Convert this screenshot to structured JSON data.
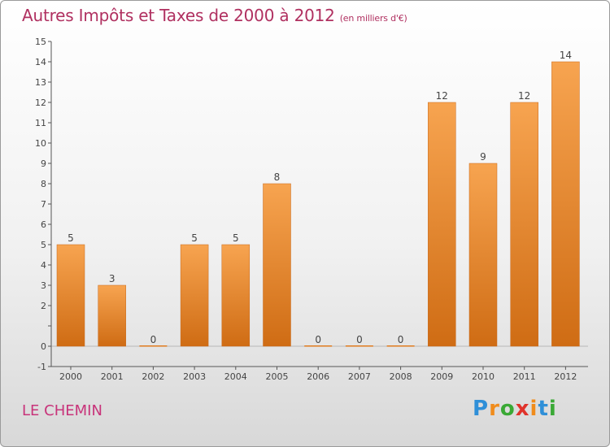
{
  "chart_data": {
    "type": "bar",
    "title": "Autres Impôts et Taxes de 2000 à 2012",
    "subtitle": "(en milliers d'€)",
    "xlabel": "",
    "ylabel": "",
    "categories": [
      "2000",
      "2001",
      "2002",
      "2003",
      "2004",
      "2005",
      "2006",
      "2007",
      "2008",
      "2009",
      "2010",
      "2011",
      "2012"
    ],
    "values": [
      5,
      3,
      0,
      5,
      5,
      8,
      0,
      0,
      0,
      12,
      9,
      12,
      14
    ],
    "ylim": [
      -1,
      15
    ],
    "yticks": [
      -1,
      0,
      1,
      2,
      3,
      4,
      5,
      6,
      7,
      8,
      9,
      10,
      11,
      12,
      13,
      14,
      15
    ],
    "ytick_labels": [
      "-1",
      "0",
      "",
      "2",
      "3",
      "4",
      "5",
      "6",
      "7",
      "8",
      "9",
      "10",
      "11",
      "12",
      "13",
      "14",
      "15"
    ],
    "grid": false,
    "bar_color": "#f0902a"
  },
  "place_name": "LE CHEMIN",
  "logo": {
    "letters": [
      "P",
      "r",
      "o",
      "x",
      "i",
      "t",
      "i"
    ],
    "colors": [
      "#2f8fd8",
      "#f08c1c",
      "#3aa935",
      "#e0332b",
      "#f08c1c",
      "#2f8fd8",
      "#3aa935"
    ]
  }
}
